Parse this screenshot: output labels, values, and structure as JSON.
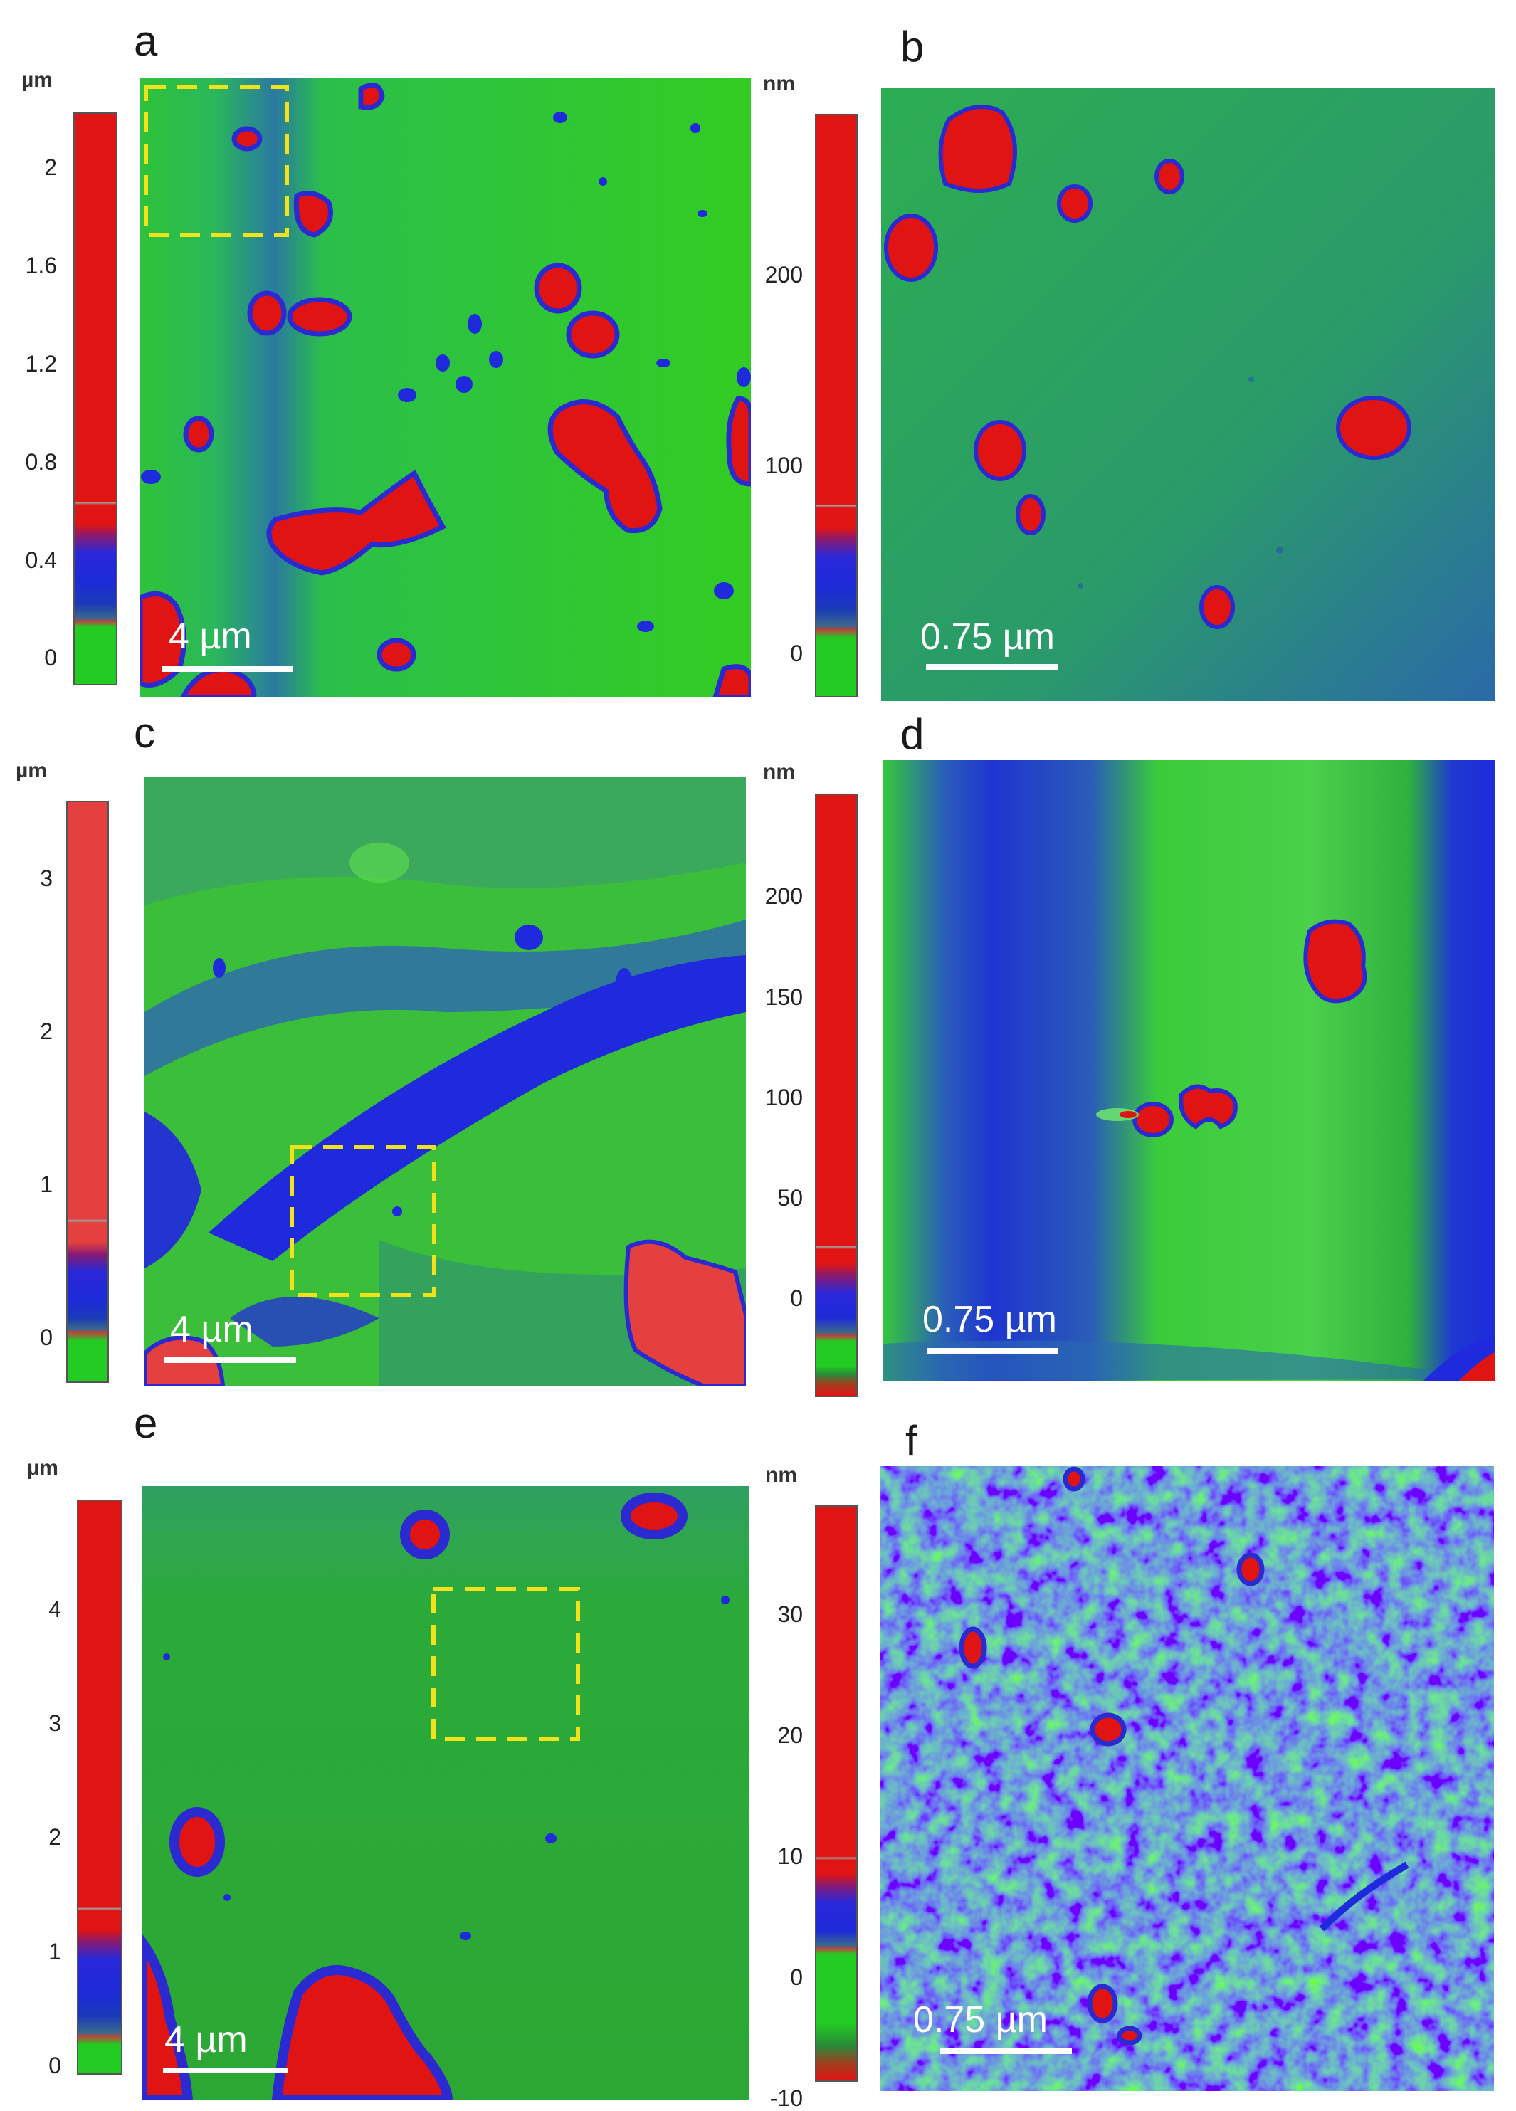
{
  "panels": {
    "a": {
      "letter": "a",
      "unit": "µm",
      "ticks": [
        "2",
        "1.6",
        "1.2",
        "0.8",
        "0.4",
        "0"
      ],
      "tick_values": [
        2,
        1.6,
        1.2,
        0.8,
        0.4,
        0
      ],
      "range": [
        -0.12,
        2.2
      ],
      "scale_bar": "4 µm"
    },
    "b": {
      "letter": "b",
      "unit": "nm",
      "ticks": [
        "200",
        "100",
        "0"
      ],
      "tick_values": [
        200,
        100,
        0
      ],
      "range": [
        -25,
        280
      ],
      "scale_bar": "0.75 µm"
    },
    "c": {
      "letter": "c",
      "unit": "µm",
      "ticks": [
        "3",
        "2",
        "1",
        "0"
      ],
      "tick_values": [
        3,
        2,
        1,
        0
      ],
      "range": [
        -0.3,
        3.5
      ],
      "scale_bar": "4 µm"
    },
    "d": {
      "letter": "d",
      "unit": "nm",
      "ticks": [
        "200",
        "150",
        "100",
        "50",
        "0"
      ],
      "tick_values": [
        200,
        150,
        100,
        50,
        0
      ],
      "range": [
        -30,
        250
      ],
      "scale_bar": "0.75 µm"
    },
    "e": {
      "letter": "e",
      "unit": "µm",
      "ticks": [
        "4",
        "3",
        "2",
        "1",
        "0"
      ],
      "tick_values": [
        4,
        3,
        2,
        1,
        0
      ],
      "range": [
        -0.12,
        4.9
      ],
      "scale_bar": "4 µm"
    },
    "f": {
      "letter": "f",
      "unit": "nm",
      "ticks": [
        "30",
        "20",
        "10",
        "0",
        "-10"
      ],
      "tick_values": [
        30,
        20,
        10,
        0,
        -10
      ],
      "range": [
        -11,
        39
      ],
      "scale_bar": "0.75 µm"
    }
  },
  "colors": {
    "high": "#e11414",
    "mid": "#1e2adc",
    "low": "#22cc22",
    "selection_box": "#f2e21a"
  }
}
